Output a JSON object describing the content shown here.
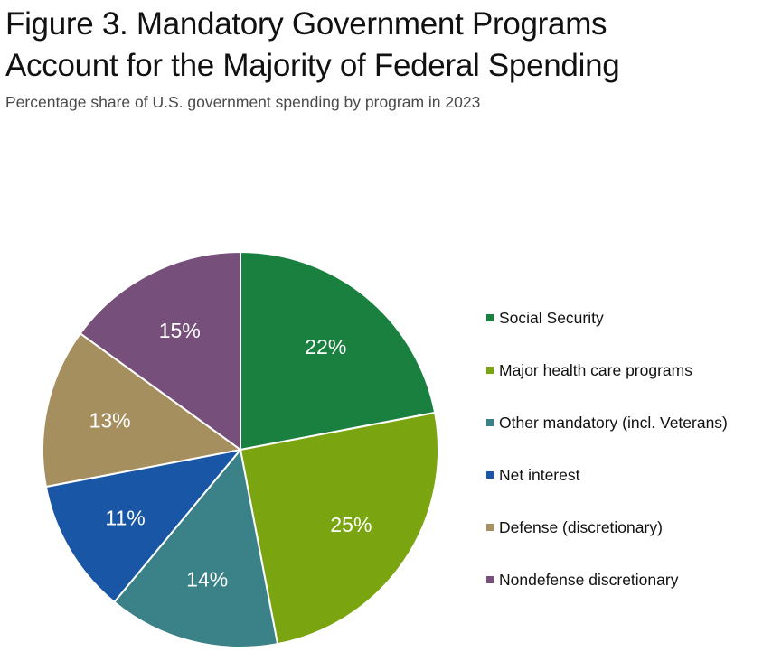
{
  "header": {
    "title_line1": "Figure 3. Mandatory Government Programs",
    "title_line2": "Account for the Majority of Federal Spending",
    "subtitle": "Percentage share of U.S. government spending by program in 2023"
  },
  "chart_data": {
    "type": "pie",
    "title": "Figure 3. Mandatory Government Programs Account for the Majority of Federal Spending",
    "subtitle": "Percentage share of U.S. government spending by program in 2023",
    "start": "12 o'clock, clockwise",
    "legend_position": "right",
    "slices": [
      {
        "name": "Social Security",
        "value": 22,
        "label": "22%",
        "color": "#1a8040"
      },
      {
        "name": "Major health care programs",
        "value": 25,
        "label": "25%",
        "color": "#7ba510"
      },
      {
        "name": "Other mandatory (incl. Veterans)",
        "value": 14,
        "label": "14%",
        "color": "#3a8188"
      },
      {
        "name": "Net interest",
        "value": 11,
        "label": "11%",
        "color": "#1a56a6"
      },
      {
        "name": "Defense (discretionary)",
        "value": 13,
        "label": "13%",
        "color": "#a58f5f"
      },
      {
        "name": "Nondefense discretionary",
        "value": 15,
        "label": "15%",
        "color": "#76507a"
      }
    ]
  }
}
